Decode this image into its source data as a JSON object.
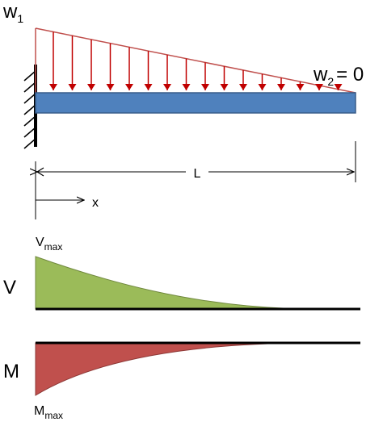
{
  "load": {
    "start": {
      "symbol": "w",
      "subscript": "1"
    },
    "end": {
      "symbol": "w",
      "subscript": "2",
      "suffix": "= 0"
    }
  },
  "dimensions": {
    "length": "L",
    "position": "x"
  },
  "shear": {
    "axis_label": "V",
    "peak": {
      "symbol": "V",
      "subscript": "max"
    }
  },
  "moment": {
    "axis_label": "M",
    "peak": {
      "symbol": "M",
      "subscript": "max"
    }
  }
}
